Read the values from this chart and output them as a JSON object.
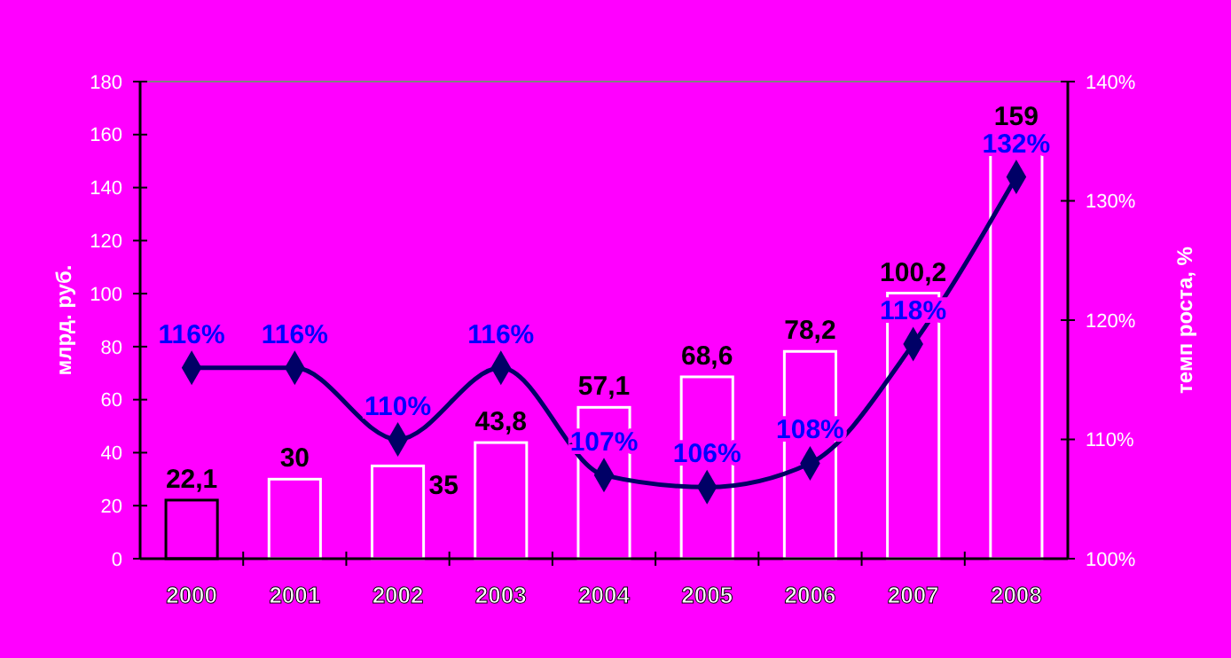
{
  "chart_data": {
    "type": "bar",
    "ylabel": "млрд. руб.",
    "y2label": "темп роста, %",
    "categories": [
      "2000",
      "2001",
      "2002",
      "2003",
      "2004",
      "2005",
      "2006",
      "2007",
      "2008"
    ],
    "series": [
      {
        "colors": [
          "#000000",
          "#ffffff",
          "#ffffff",
          "#ffffff",
          "#ffffff",
          "#ffffff",
          "#ffffff",
          "#ffffff",
          "#ffffff"
        ],
        "values": [
          22.1,
          30,
          35,
          43.8,
          57.1,
          68.6,
          78.2,
          100.2,
          159
        ],
        "value_labels": [
          "22,1",
          "30",
          "35",
          "43,8",
          "57,1",
          "68,6",
          "78,2",
          "100,2",
          "159"
        ]
      },
      {
        "type": "line",
        "axis": "y2",
        "color": "#000066",
        "marker": "diamond",
        "values": [
          116,
          116,
          110,
          116,
          107,
          106,
          108,
          118,
          132
        ],
        "value_labels": [
          "116%",
          "116%",
          "110%",
          "116%",
          "107%",
          "106%",
          "108%",
          "118%",
          "132%"
        ]
      }
    ],
    "ylim": [
      0,
      180
    ],
    "yticks": [
      0,
      20,
      40,
      60,
      80,
      100,
      120,
      140,
      160,
      180
    ],
    "y2lim": [
      100,
      140
    ],
    "y2ticks": [
      {
        "value": 100,
        "label": "100%"
      },
      {
        "value": 110,
        "label": "110%"
      },
      {
        "value": 120,
        "label": "120%"
      },
      {
        "value": 130,
        "label": "130%"
      },
      {
        "value": 140,
        "label": "140%"
      }
    ]
  }
}
